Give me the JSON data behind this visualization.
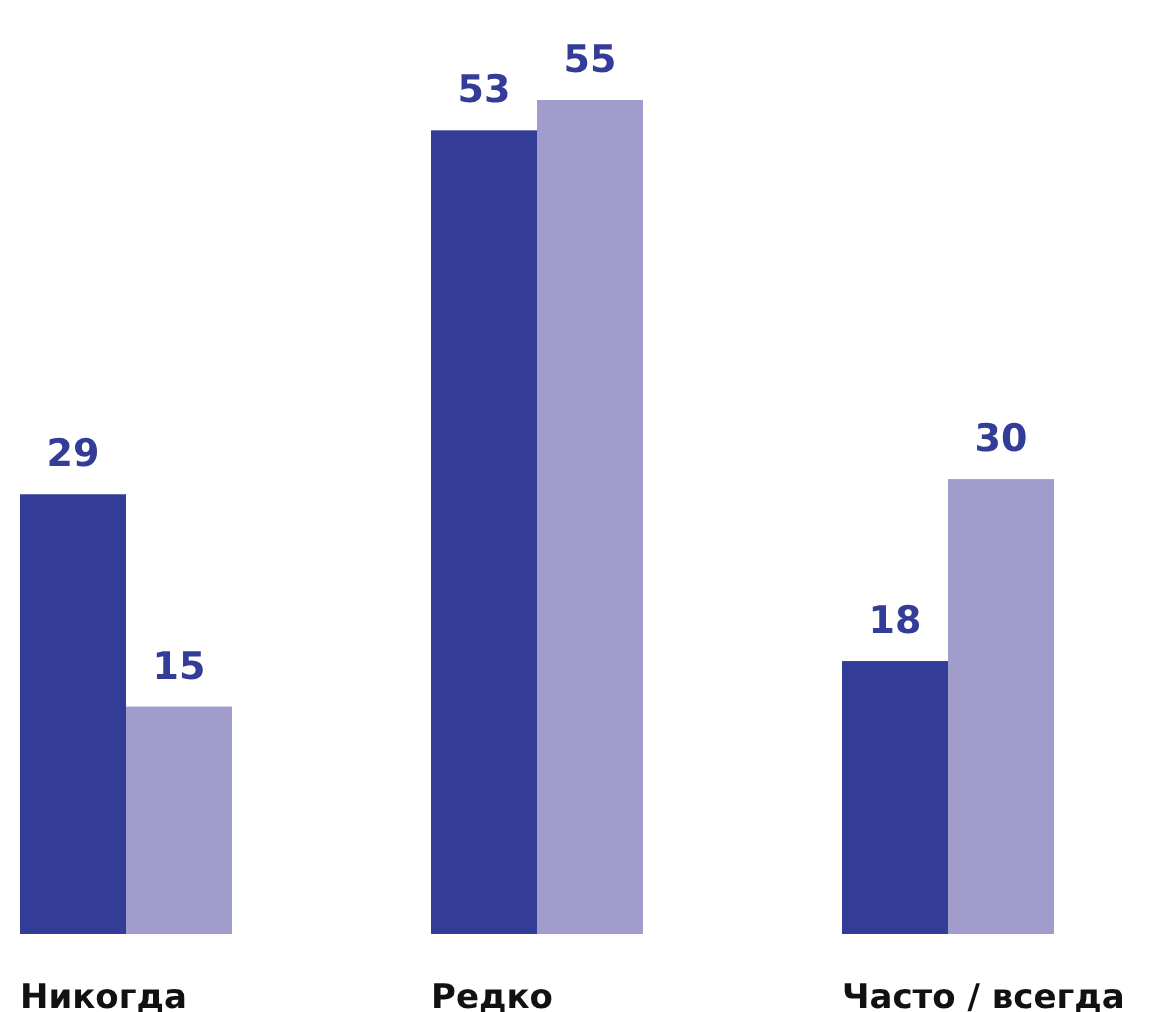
{
  "chart_data": {
    "type": "bar",
    "categories": [
      "Никогда",
      "Редко",
      "Часто / всегда"
    ],
    "series": [
      {
        "color": "#333c96",
        "values": [
          29,
          53,
          18
        ]
      },
      {
        "color": "#a09ccc",
        "values": [
          15,
          55,
          30
        ]
      }
    ],
    "data_labels": true
  }
}
